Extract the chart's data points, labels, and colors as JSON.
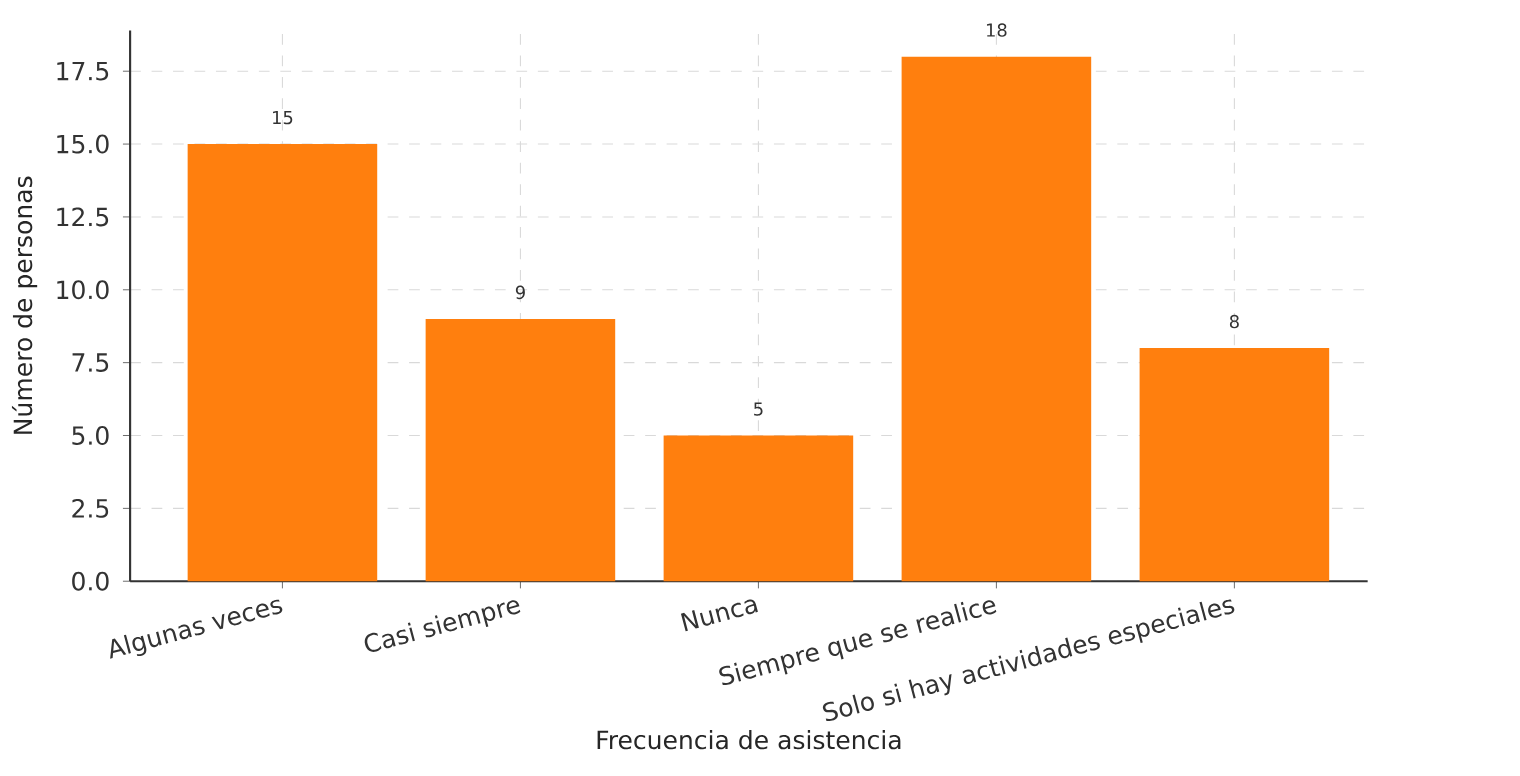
{
  "chart_data": {
    "type": "bar",
    "xlabel": "Frecuencia de asistencia",
    "ylabel": "Número de personas",
    "categories": [
      "Algunas veces",
      "Casi siempre",
      "Nunca",
      "Siempre que se realice",
      "Solo si hay actividades especiales"
    ],
    "values": [
      15,
      9,
      5,
      18,
      8
    ],
    "color": "#ff7f0e",
    "ylim": [
      0,
      18.9
    ],
    "yticks": [
      {
        "value": 0,
        "label": "0.0"
      },
      {
        "value": 2.5,
        "label": "2.5"
      },
      {
        "value": 5,
        "label": "5.0"
      },
      {
        "value": 7.5,
        "label": "7.5"
      },
      {
        "value": 10,
        "label": "10.0"
      },
      {
        "value": 12.5,
        "label": "12.5"
      },
      {
        "value": 15,
        "label": "15.0"
      },
      {
        "value": 17.5,
        "label": "17.5"
      }
    ],
    "grid": true,
    "data_labels": true
  }
}
